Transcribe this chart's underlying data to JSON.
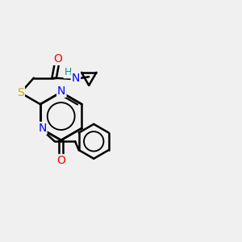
{
  "background_color": "#f0f0f0",
  "bond_color": "#000000",
  "bond_width": 1.8,
  "atom_colors": {
    "N": "#0000ff",
    "O": "#ff0000",
    "S": "#ccaa00",
    "H": "#009090",
    "C": "#000000"
  },
  "font_size": 10,
  "xlim": [
    0,
    10
  ],
  "ylim": [
    0,
    10
  ]
}
